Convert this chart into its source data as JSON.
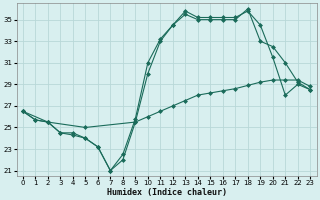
{
  "xlabel": "Humidex (Indice chaleur)",
  "background_color": "#d8efef",
  "grid_color": "#b8d8d8",
  "line_color": "#1a6b5a",
  "xlim": [
    -0.5,
    23.5
  ],
  "ylim": [
    20.5,
    36.5
  ],
  "xticks": [
    0,
    1,
    2,
    3,
    4,
    5,
    6,
    7,
    8,
    9,
    10,
    11,
    12,
    13,
    14,
    15,
    16,
    17,
    18,
    19,
    20,
    21,
    22,
    23
  ],
  "yticks": [
    21,
    23,
    25,
    27,
    29,
    31,
    33,
    35
  ],
  "line1_x": [
    0,
    1,
    2,
    3,
    4,
    5,
    6,
    7,
    8,
    9,
    10,
    11,
    12,
    13,
    14,
    15,
    16,
    17,
    18,
    19,
    20,
    21,
    22,
    23
  ],
  "line1_y": [
    26.5,
    25.7,
    25.5,
    24.5,
    24.5,
    24.0,
    23.2,
    21.0,
    22.5,
    25.8,
    31.0,
    33.2,
    34.5,
    35.8,
    35.2,
    35.2,
    35.2,
    35.2,
    35.8,
    34.5,
    31.5,
    28.0,
    29.0,
    28.5
  ],
  "line2_x": [
    0,
    1,
    2,
    3,
    4,
    5,
    6,
    7,
    8,
    9,
    10,
    11,
    12,
    13,
    14,
    15,
    16,
    17,
    18,
    19,
    20,
    21,
    22,
    23
  ],
  "line2_y": [
    26.5,
    25.7,
    25.5,
    24.5,
    24.3,
    24.0,
    23.2,
    21.0,
    22.0,
    25.5,
    30.0,
    33.0,
    34.5,
    35.5,
    35.0,
    35.0,
    35.0,
    35.0,
    36.0,
    33.0,
    32.5,
    31.0,
    29.2,
    28.5
  ],
  "line3_x": [
    0,
    2,
    5,
    9,
    10,
    11,
    12,
    13,
    14,
    15,
    16,
    17,
    18,
    19,
    20,
    21,
    22,
    23
  ],
  "line3_y": [
    26.5,
    25.5,
    25.0,
    25.5,
    26.0,
    26.5,
    27.0,
    27.5,
    28.0,
    28.2,
    28.4,
    28.6,
    28.9,
    29.2,
    29.4,
    29.4,
    29.4,
    28.8
  ]
}
